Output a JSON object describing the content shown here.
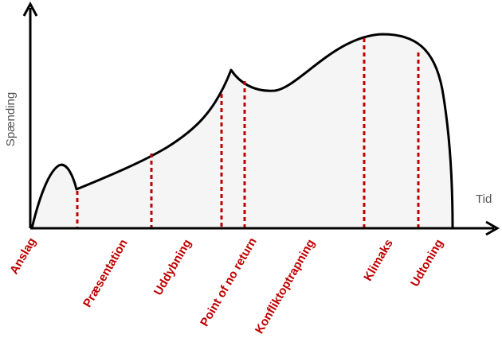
{
  "axes": {
    "y_label": "Spænding",
    "x_label": "Tid"
  },
  "phases": [
    {
      "label": "Anslag"
    },
    {
      "label": "Præsentation"
    },
    {
      "label": "Uddybning"
    },
    {
      "label": "Point of no return"
    },
    {
      "label": "Konfliktoptrapning"
    },
    {
      "label": "Klimaks"
    },
    {
      "label": "Udtoning"
    }
  ],
  "colors": {
    "curve": "#000000",
    "fill": "#f5f5f5",
    "marker": "#c00000",
    "label": "#c00000",
    "axis": "#000000"
  }
}
